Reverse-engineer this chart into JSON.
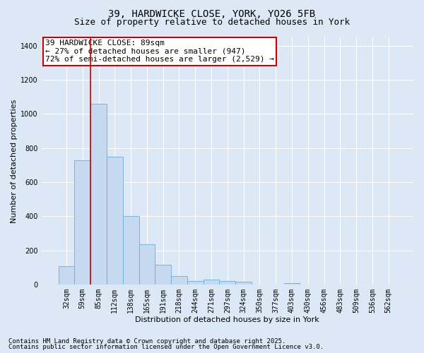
{
  "title_line1": "39, HARDWICKE CLOSE, YORK, YO26 5FB",
  "title_line2": "Size of property relative to detached houses in York",
  "xlabel": "Distribution of detached houses by size in York",
  "ylabel": "Number of detached properties",
  "categories": [
    "32sqm",
    "59sqm",
    "85sqm",
    "112sqm",
    "138sqm",
    "165sqm",
    "191sqm",
    "218sqm",
    "244sqm",
    "271sqm",
    "297sqm",
    "324sqm",
    "350sqm",
    "377sqm",
    "403sqm",
    "430sqm",
    "456sqm",
    "483sqm",
    "509sqm",
    "536sqm",
    "562sqm"
  ],
  "values": [
    110,
    730,
    1060,
    750,
    400,
    235,
    115,
    52,
    22,
    28,
    22,
    18,
    0,
    0,
    10,
    0,
    0,
    0,
    0,
    0,
    0
  ],
  "bar_color": "#c5d9f0",
  "bar_edge_color": "#6baed6",
  "vline_index": 2,
  "vline_color": "#cc0000",
  "annotation_text": "39 HARDWICKE CLOSE: 89sqm\n← 27% of detached houses are smaller (947)\n72% of semi-detached houses are larger (2,529) →",
  "annotation_box_facecolor": "#ffffff",
  "annotation_box_edgecolor": "#cc0000",
  "ylim": [
    0,
    1450
  ],
  "yticks": [
    0,
    200,
    400,
    600,
    800,
    1000,
    1200,
    1400
  ],
  "bg_color": "#dce8f5",
  "plot_bg_color": "#dce8f5",
  "grid_color": "#ffffff",
  "footnote1": "Contains HM Land Registry data © Crown copyright and database right 2025.",
  "footnote2": "Contains public sector information licensed under the Open Government Licence v3.0.",
  "title_fontsize": 10,
  "subtitle_fontsize": 9,
  "axis_label_fontsize": 8,
  "tick_fontsize": 7,
  "annotation_fontsize": 8,
  "footnote_fontsize": 6.5
}
